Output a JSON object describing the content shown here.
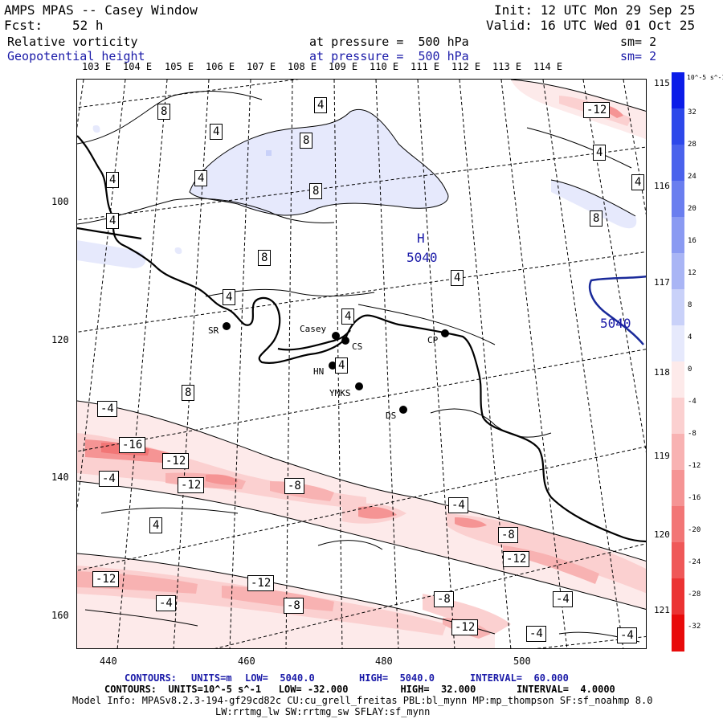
{
  "header": {
    "title": "AMPS MPAS -- Casey Window",
    "init": "Init: 12 UTC Mon 29 Sep 25",
    "fcst_label": "Fcst:",
    "fcst_value": "52 h",
    "valid": "Valid: 16 UTC Wed 01 Oct 25",
    "field1_name": "Relative vorticity",
    "field1_level": "at pressure =  500 hPa",
    "field1_sm": "sm= 2",
    "field2_name": "Geopotential height",
    "field2_level": "at pressure =  500 hPa",
    "field2_sm": "sm= 2"
  },
  "top_lon_labels": [
    "103 E",
    "104 E",
    "105 E",
    "106 E",
    "107 E",
    "108 E",
    "109 E",
    "110 E",
    "111 E",
    "112 E",
    "113 E",
    "114 E"
  ],
  "right_lon_labels": [
    "115 E",
    "116 E",
    "117 E",
    "118 E",
    "119 E",
    "120 E",
    "121 E"
  ],
  "y_axis_labels": [
    "100",
    "120",
    "140",
    "160"
  ],
  "x_axis_labels": [
    "440",
    "460",
    "480",
    "500"
  ],
  "colorbar": {
    "units": "10^-5 s^-1",
    "labels": [
      "32",
      "28",
      "24",
      "20",
      "16",
      "12",
      "8",
      "4",
      "0",
      "-4",
      "-8",
      "-12",
      "-16",
      "-20",
      "-24",
      "-28",
      "-32"
    ],
    "colors_positive": [
      "#0b1ce8",
      "#2d48ea",
      "#4a62ec",
      "#6a7eef",
      "#8a9af2",
      "#a9b5f5",
      "#c9d1f9",
      "#e6e9fc"
    ],
    "colors_negative": [
      "#fdeaea",
      "#fbd0d0",
      "#f8b2b2",
      "#f59494",
      "#f27676",
      "#ef5858",
      "#eb3333",
      "#e80b0b"
    ]
  },
  "stations": [
    "Casey",
    "CS",
    "SR",
    "CP",
    "HN",
    "YMKS",
    "DS"
  ],
  "height_labels": [
    "H",
    "5040",
    "5040"
  ],
  "contour_labels": [
    "8",
    "4",
    "8",
    "4",
    "4",
    "4",
    "8",
    "8",
    "-12",
    "4",
    "4",
    "4",
    "4",
    "4",
    "4",
    "8",
    "8",
    "4",
    "-4",
    "-16",
    "-12",
    "-12",
    "-4",
    "-8",
    "4",
    "-4",
    "-8",
    "-12",
    "-12",
    "-12",
    "-4",
    "-8",
    "-8",
    "-12",
    "-4",
    "-4",
    "-4"
  ],
  "footer": {
    "line1_contours": "CONTOURS:",
    "line1_units": "UNITS=m",
    "line1_low": "LOW=  5040.0",
    "line1_high": "HIGH=  5040.0",
    "line1_interval": "INTERVAL=  60.000",
    "line2": "CONTOURS:  UNITS=10^-5 s^-1   LOW= -32.000         HIGH=  32.000       INTERVAL=  4.0000",
    "model_info": "Model Info: MPASv8.2.3-194-gf29cd82c CU:cu_grell_freitas PBL:bl_mynn MP:mp_thompson SF:sf_noahmp 8.0",
    "model_info2": "LW:rrtmg_lw SW:rrtmg_sw SFLAY:sf_mynn"
  }
}
